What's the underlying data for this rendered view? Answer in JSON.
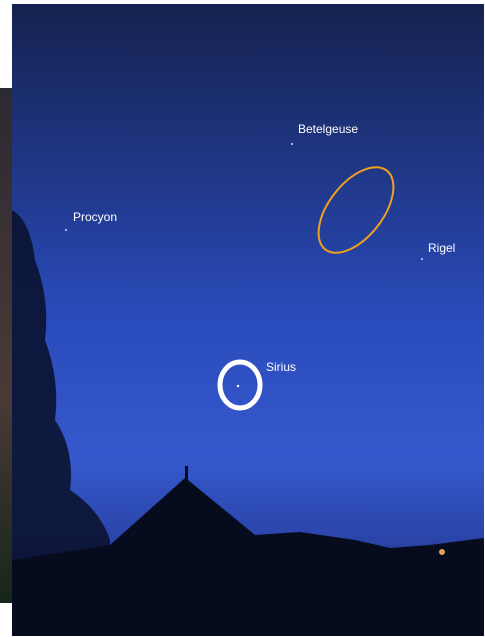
{
  "stars": [
    {
      "label": "Betelgeuse"
    },
    {
      "label": "Procyon"
    },
    {
      "label": "Rigel"
    },
    {
      "label": "Sirius"
    }
  ]
}
